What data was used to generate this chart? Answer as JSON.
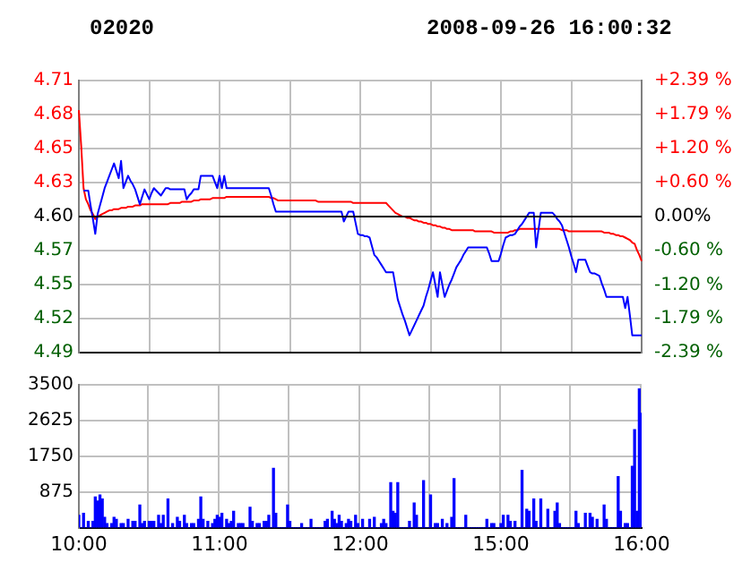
{
  "chart_data": [
    {
      "type": "line",
      "title": "02020",
      "subtitle": "2008-09-26 16:00:32",
      "categories": [
        null,
        null,
        null,
        null,
        null,
        null,
        null,
        null,
        null,
        null,
        null,
        null,
        null,
        null,
        null,
        null,
        null,
        null,
        null,
        null,
        null,
        null,
        null,
        null,
        null,
        null,
        null,
        null,
        null,
        null,
        null,
        null,
        null,
        null,
        null,
        null,
        null,
        null,
        null,
        null,
        null,
        null,
        null,
        null,
        null,
        null,
        null,
        null,
        null,
        null,
        null,
        null,
        null,
        null,
        null,
        null,
        null,
        null,
        null,
        null,
        null,
        null,
        null,
        null,
        null,
        null,
        null,
        null,
        null,
        null,
        null,
        null,
        null,
        null,
        null,
        null,
        null,
        null,
        null,
        null,
        null,
        null,
        null,
        null,
        null,
        null,
        null,
        null,
        null,
        null,
        null,
        null,
        null,
        null,
        null,
        null,
        null,
        null,
        null,
        null,
        null,
        null,
        null,
        null,
        null,
        null,
        null,
        null,
        null,
        null,
        null,
        null,
        null,
        null,
        null,
        null,
        null,
        null,
        null,
        null,
        null,
        null,
        null,
        null,
        null,
        null,
        null,
        null,
        null,
        null,
        null,
        null,
        null,
        null,
        null,
        null,
        null,
        null,
        null,
        null,
        null,
        null,
        null,
        null,
        null,
        null,
        null,
        null,
        null,
        null,
        null,
        null,
        null,
        null,
        null,
        null,
        null,
        null,
        null,
        null,
        null,
        null,
        null,
        null,
        null,
        null,
        null,
        null,
        null,
        null,
        null,
        null,
        null,
        null,
        null,
        null,
        null,
        null,
        null,
        null,
        null,
        null,
        null,
        null,
        null,
        null,
        null,
        null,
        null,
        null,
        null,
        null,
        null,
        null,
        null,
        null,
        null,
        null,
        null,
        null,
        null,
        null,
        null,
        null,
        null,
        null,
        null,
        null,
        null,
        null,
        null,
        null,
        null,
        null,
        null,
        null,
        null,
        null,
        null,
        null,
        null,
        null,
        null,
        null,
        null,
        null,
        null,
        null,
        null,
        null,
        null,
        null,
        null,
        null,
        null,
        null,
        null,
        null,
        null,
        null,
        null
      ],
      "tick_labels": "y",
      "ylim": [
        4.49,
        4.71
      ],
      "yticks": [
        {
          "value": 4.71,
          "label": "4.71"
        },
        {
          "value": 4.6825,
          "label": "4.68"
        },
        {
          "value": 4.655,
          "label": "4.65"
        },
        {
          "value": 4.6275,
          "label": "4.63"
        },
        {
          "value": 4.6,
          "label": "4.60"
        },
        {
          "value": 4.5725,
          "label": "4.57"
        },
        {
          "value": 4.545,
          "label": "4.55"
        },
        {
          "value": 4.5175,
          "label": "4.52"
        },
        {
          "value": 4.49,
          "label": "4.49"
        }
      ],
      "y2lim": [
        -2.39,
        2.39
      ],
      "y2ticks": [
        {
          "value": 2.39,
          "label": "+2.39 %"
        },
        {
          "value": 1.79,
          "label": "+1.79 %"
        },
        {
          "value": 1.2,
          "label": "+1.20 %"
        },
        {
          "value": 0.6,
          "label": "+0.60 %"
        },
        {
          "value": 0,
          "label": "0.00%"
        },
        {
          "value": -0.6,
          "label": "-0.60 %"
        },
        {
          "value": -1.2,
          "label": "-1.20 %"
        },
        {
          "value": -1.79,
          "label": "-1.79 %"
        },
        {
          "value": -2.39,
          "label": "-2.39 %"
        }
      ],
      "grid": true,
      "marker": "none",
      "ref_lines": [
        {
          "axis": "y",
          "value": 4.6,
          "color": "#000000"
        }
      ],
      "series": [
        {
          "color": "#0000ff",
          "values": [
            null,
            null,
            4.621,
            4.621,
            4.621,
            4.609,
            4.598,
            4.586,
            4.602,
            4.609,
            4.616,
            4.623,
            4.628,
            4.633,
            4.638,
            4.643,
            4.637,
            4.631,
            4.645,
            4.623,
            4.628,
            4.633,
            4.629,
            4.626,
            4.622,
            4.616,
            4.61,
            4.616,
            4.622,
            4.618,
            4.614,
            4.619,
            4.623,
            4.621,
            4.619,
            4.617,
            4.62,
            4.623,
            4.623,
            4.622,
            4.622,
            4.622,
            4.622,
            4.622,
            4.622,
            4.622,
            4.614,
            4.617,
            4.619,
            4.622,
            4.622,
            4.622,
            4.633,
            4.633,
            4.633,
            4.633,
            4.633,
            4.633,
            4.628,
            4.623,
            4.633,
            4.623,
            4.633,
            4.623,
            4.623,
            4.623,
            4.623,
            4.623,
            4.623,
            4.623,
            4.623,
            4.623,
            4.623,
            4.623,
            4.623,
            4.623,
            4.623,
            4.623,
            4.623,
            4.623,
            4.623,
            4.623,
            4.617,
            4.61,
            4.604,
            4.604,
            4.604,
            4.604,
            4.604,
            4.604,
            4.604,
            4.604,
            4.604,
            4.604,
            4.604,
            4.604,
            4.604,
            4.604,
            4.604,
            4.604,
            4.604,
            4.604,
            4.604,
            4.604,
            4.604,
            4.604,
            4.604,
            4.604,
            4.604,
            4.604,
            4.604,
            4.604,
            4.604,
            4.596,
            4.6,
            4.604,
            4.604,
            4.604,
            4.595,
            4.586,
            4.585,
            4.585,
            4.584,
            4.584,
            4.583,
            4.576,
            4.569,
            4.567,
            4.564,
            4.561,
            4.558,
            4.555,
            4.555,
            4.555,
            4.555,
            4.544,
            4.533,
            4.527,
            4.521,
            4.516,
            4.51,
            4.504,
            4.508,
            4.512,
            4.516,
            4.52,
            4.524,
            4.528,
            4.535,
            4.541,
            4.548,
            4.555,
            4.545,
            4.535,
            4.555,
            4.545,
            4.535,
            4.54,
            4.545,
            4.549,
            4.554,
            4.559,
            4.562,
            4.565,
            4.569,
            4.572,
            4.575,
            4.575,
            4.575,
            4.575,
            4.575,
            4.575,
            4.575,
            4.575,
            4.575,
            4.57,
            4.564,
            4.564,
            4.564,
            4.564,
            4.57,
            4.577,
            4.583,
            4.584,
            4.585,
            4.585,
            4.586,
            4.589,
            4.592,
            4.594,
            4.597,
            4.6,
            4.603,
            4.603,
            4.603,
            4.575,
            4.589,
            4.603,
            4.603,
            4.603,
            4.603,
            4.603,
            4.603,
            4.601,
            4.598,
            4.596,
            4.593,
            4.587,
            4.581,
            4.575,
            4.568,
            4.562,
            4.555,
            4.565,
            4.565,
            4.565,
            4.565,
            4.56,
            4.555,
            4.554,
            4.554,
            4.553,
            4.552,
            4.546,
            4.541,
            4.535,
            4.535,
            4.535,
            4.535,
            4.535,
            4.535,
            4.535,
            4.535,
            4.526,
            4.535,
            4.52,
            4.504,
            4.504,
            4.504,
            4.504,
            4.504
          ]
        },
        {
          "color": "#ff0000",
          "values": [
            4.686,
            4.657,
            4.623,
            4.614,
            4.61,
            4.605,
            4.602,
            4.598,
            4.6,
            4.601,
            4.602,
            4.603,
            4.604,
            4.605,
            4.605,
            4.606,
            4.606,
            4.606,
            4.607,
            4.607,
            4.607,
            4.608,
            4.608,
            4.608,
            4.609,
            4.609,
            4.609,
            4.61,
            4.61,
            4.61,
            4.61,
            4.61,
            4.61,
            4.61,
            4.61,
            4.61,
            4.61,
            4.61,
            4.61,
            4.611,
            4.611,
            4.611,
            4.611,
            4.611,
            4.612,
            4.612,
            4.612,
            4.612,
            4.612,
            4.613,
            4.613,
            4.613,
            4.614,
            4.614,
            4.614,
            4.614,
            4.614,
            4.615,
            4.615,
            4.615,
            4.615,
            4.615,
            4.615,
            4.616,
            4.616,
            4.616,
            4.616,
            4.616,
            4.616,
            4.616,
            4.616,
            4.616,
            4.616,
            4.616,
            4.616,
            4.616,
            4.616,
            4.616,
            4.616,
            4.616,
            4.616,
            4.616,
            4.615,
            4.615,
            4.614,
            4.613,
            4.613,
            4.613,
            4.613,
            4.613,
            4.613,
            4.613,
            4.613,
            4.613,
            4.613,
            4.613,
            4.613,
            4.613,
            4.613,
            4.613,
            4.613,
            4.613,
            4.612,
            4.612,
            4.612,
            4.612,
            4.612,
            4.612,
            4.612,
            4.612,
            4.612,
            4.612,
            4.612,
            4.612,
            4.612,
            4.612,
            4.612,
            4.611,
            4.611,
            4.611,
            4.611,
            4.611,
            4.611,
            4.611,
            4.611,
            4.611,
            4.611,
            4.611,
            4.611,
            4.611,
            4.611,
            4.611,
            4.609,
            4.607,
            4.605,
            4.603,
            4.602,
            4.601,
            4.6,
            4.6,
            4.599,
            4.599,
            4.598,
            4.597,
            4.597,
            4.596,
            4.596,
            4.595,
            4.595,
            4.594,
            4.594,
            4.593,
            4.593,
            4.592,
            4.592,
            4.591,
            4.591,
            4.59,
            4.59,
            4.589,
            4.589,
            4.589,
            4.589,
            4.589,
            4.589,
            4.589,
            4.589,
            4.589,
            4.589,
            4.588,
            4.588,
            4.588,
            4.588,
            4.588,
            4.588,
            4.588,
            4.588,
            4.587,
            4.587,
            4.587,
            4.587,
            4.587,
            4.587,
            4.587,
            4.588,
            4.588,
            4.589,
            4.589,
            4.59,
            4.59,
            4.59,
            4.59,
            4.59,
            4.59,
            4.59,
            4.59,
            4.59,
            4.59,
            4.59,
            4.59,
            4.59,
            4.59,
            4.59,
            4.59,
            4.59,
            4.59,
            4.589,
            4.589,
            4.589,
            4.588,
            4.588,
            4.588,
            4.588,
            4.588,
            4.588,
            4.588,
            4.588,
            4.588,
            4.588,
            4.588,
            4.588,
            4.588,
            4.588,
            4.588,
            4.587,
            4.587,
            4.587,
            4.586,
            4.586,
            4.585,
            4.585,
            4.584,
            4.584,
            4.583,
            4.582,
            4.581,
            4.579,
            4.578,
            4.573,
            4.569,
            4.564
          ]
        }
      ]
    },
    {
      "type": "bar",
      "categories": [
        "10:00",
        null,
        null,
        null,
        null,
        null,
        null,
        null,
        null,
        null,
        null,
        null,
        null,
        null,
        null,
        null,
        null,
        null,
        null,
        null,
        null,
        null,
        null,
        null,
        null,
        null,
        null,
        null,
        null,
        null,
        null,
        null,
        null,
        null,
        null,
        null,
        null,
        null,
        null,
        null,
        null,
        null,
        null,
        null,
        null,
        null,
        null,
        null,
        null,
        null,
        null,
        null,
        null,
        null,
        null,
        null,
        null,
        null,
        null,
        null,
        "11:00",
        null,
        null,
        null,
        null,
        null,
        null,
        null,
        null,
        null,
        null,
        null,
        null,
        null,
        null,
        null,
        null,
        null,
        null,
        null,
        null,
        null,
        null,
        null,
        null,
        null,
        null,
        null,
        null,
        null,
        null,
        null,
        null,
        null,
        null,
        null,
        null,
        null,
        null,
        null,
        null,
        null,
        null,
        null,
        null,
        null,
        null,
        null,
        null,
        null,
        null,
        null,
        null,
        null,
        null,
        null,
        null,
        null,
        null,
        null,
        "12:00",
        null,
        null,
        null,
        null,
        null,
        null,
        null,
        null,
        null,
        null,
        null,
        null,
        null,
        null,
        null,
        null,
        null,
        null,
        null,
        null,
        null,
        null,
        null,
        null,
        null,
        null,
        null,
        null,
        null,
        null,
        null,
        null,
        null,
        null,
        null,
        null,
        null,
        null,
        null,
        null,
        null,
        null,
        null,
        null,
        null,
        null,
        null,
        null,
        null,
        null,
        null,
        null,
        null,
        null,
        null,
        null,
        null,
        null,
        null,
        "15:00",
        null,
        null,
        null,
        null,
        null,
        null,
        null,
        null,
        null,
        null,
        null,
        null,
        null,
        null,
        null,
        null,
        null,
        null,
        null,
        null,
        null,
        null,
        null,
        null,
        null,
        null,
        null,
        null,
        null,
        null,
        null,
        null,
        null,
        null,
        null,
        null,
        null,
        null,
        null,
        null,
        null,
        null,
        null,
        null,
        null,
        null,
        null,
        null,
        null,
        null,
        null,
        null,
        null,
        null,
        null,
        null,
        null,
        null,
        null,
        "16:00"
      ],
      "ylim": [
        0,
        3500
      ],
      "yticks": [
        875,
        1750,
        2625,
        3500
      ],
      "grid": true,
      "color": "#0000ff",
      "values": [
        300,
        0,
        350,
        0,
        150,
        0,
        150,
        750,
        650,
        800,
        700,
        250,
        100,
        0,
        100,
        250,
        200,
        0,
        100,
        100,
        0,
        200,
        0,
        150,
        150,
        0,
        550,
        100,
        150,
        0,
        150,
        150,
        150,
        0,
        300,
        100,
        300,
        0,
        700,
        0,
        100,
        0,
        250,
        150,
        0,
        300,
        100,
        0,
        100,
        100,
        0,
        200,
        750,
        200,
        0,
        150,
        0,
        100,
        200,
        300,
        250,
        350,
        0,
        200,
        100,
        150,
        400,
        0,
        100,
        100,
        100,
        0,
        0,
        500,
        150,
        0,
        100,
        100,
        0,
        150,
        150,
        300,
        0,
        1450,
        350,
        0,
        0,
        0,
        0,
        550,
        150,
        0,
        0,
        0,
        0,
        100,
        0,
        0,
        0,
        200,
        0,
        0,
        0,
        0,
        0,
        150,
        200,
        0,
        400,
        200,
        100,
        300,
        150,
        0,
        100,
        200,
        150,
        0,
        300,
        100,
        0,
        200,
        0,
        0,
        200,
        0,
        250,
        0,
        0,
        100,
        200,
        100,
        0,
        1100,
        400,
        350,
        1100,
        0,
        0,
        0,
        0,
        150,
        0,
        600,
        300,
        0,
        0,
        1150,
        0,
        0,
        800,
        0,
        100,
        100,
        0,
        200,
        0,
        100,
        0,
        250,
        1200,
        0,
        0,
        0,
        0,
        300,
        0,
        0,
        0,
        0,
        0,
        0,
        0,
        0,
        200,
        0,
        100,
        100,
        0,
        0,
        100,
        300,
        0,
        300,
        150,
        0,
        150,
        0,
        0,
        1400,
        0,
        450,
        400,
        0,
        700,
        150,
        0,
        700,
        0,
        0,
        450,
        0,
        0,
        400,
        600,
        100,
        0,
        0,
        0,
        0,
        0,
        0,
        400,
        100,
        0,
        0,
        350,
        0,
        350,
        250,
        0,
        200,
        0,
        0,
        550,
        200,
        0,
        0,
        0,
        0,
        1250,
        400,
        0,
        100,
        100,
        0,
        1500,
        2400,
        400,
        3400,
        2800
      ]
    }
  ]
}
